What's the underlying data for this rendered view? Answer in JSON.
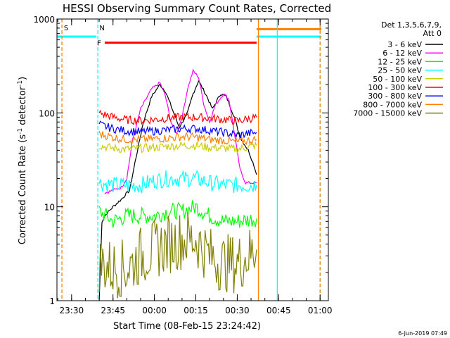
{
  "chart_data": {
    "type": "line",
    "title": "HESSI Observing Summary Count Rates, Corrected",
    "xlabel": "Start Time (08-Feb-15 23:24:42)",
    "ylabel": "Corrected Count Rate (s⁻¹ detector⁻¹)",
    "ylabel_main": "Corrected Count Rate (s",
    "ylabel_mid": " detector",
    "ylabel_end": ")",
    "ylabel_sup": "-1",
    "yscale": "log",
    "xlim": [
      "23:24:42",
      "01:03:00"
    ],
    "ylim": [
      1,
      1000
    ],
    "x_ticks": [
      "23:30",
      "23:45",
      "00:00",
      "00:15",
      "00:30",
      "00:45",
      "01:00"
    ],
    "y_ticks": [
      {
        "value": 1,
        "label": "1"
      },
      {
        "value": 10,
        "label": "10"
      },
      {
        "value": 100,
        "label": "100"
      },
      {
        "value": 1000,
        "label": "1000"
      }
    ],
    "legend_title_1": "Det 1,3,5,6,7,9,",
    "legend_title_2": "Att 0",
    "legend_position": "top-right outside plot",
    "series": [
      {
        "name": "3 - 6 keV",
        "color": "#000000",
        "points": [
          [
            "23:40",
            1
          ],
          [
            "23:41",
            7
          ],
          [
            "23:42",
            8
          ],
          [
            "23:45",
            10
          ],
          [
            "23:48",
            12
          ],
          [
            "23:51",
            15
          ],
          [
            "23:53",
            30
          ],
          [
            "23:56",
            80
          ],
          [
            "23:59",
            150
          ],
          [
            "00:02",
            200
          ],
          [
            "00:04",
            170
          ],
          [
            "00:07",
            100
          ],
          [
            "00:09",
            70
          ],
          [
            "00:12",
            100
          ],
          [
            "00:14",
            160
          ],
          [
            "00:16",
            220
          ],
          [
            "00:19",
            150
          ],
          [
            "00:21",
            110
          ],
          [
            "00:24",
            160
          ],
          [
            "00:26",
            150
          ],
          [
            "00:29",
            90
          ],
          [
            "00:31",
            55
          ],
          [
            "00:34",
            40
          ],
          [
            "00:36",
            28
          ],
          [
            "00:37",
            22
          ]
        ]
      },
      {
        "name": "6 - 12 keV",
        "color": "#ff00ff",
        "points": [
          [
            "23:42",
            14
          ],
          [
            "23:45",
            15
          ],
          [
            "23:48",
            16
          ],
          [
            "23:50",
            20
          ],
          [
            "23:52",
            50
          ],
          [
            "23:55",
            110
          ],
          [
            "23:59",
            180
          ],
          [
            "00:02",
            210
          ],
          [
            "00:04",
            150
          ],
          [
            "00:06",
            80
          ],
          [
            "00:08",
            60
          ],
          [
            "00:10",
            90
          ],
          [
            "00:12",
            180
          ],
          [
            "00:14",
            280
          ],
          [
            "00:16",
            240
          ],
          [
            "00:18",
            120
          ],
          [
            "00:20",
            80
          ],
          [
            "00:22",
            120
          ],
          [
            "00:25",
            160
          ],
          [
            "00:27",
            140
          ],
          [
            "00:29",
            60
          ],
          [
            "00:31",
            25
          ],
          [
            "00:33",
            18
          ],
          [
            "00:37",
            18
          ]
        ]
      },
      {
        "name": "12 - 25 keV",
        "color": "#00ff00",
        "points": [
          [
            "23:40",
            9
          ],
          [
            "23:45",
            7
          ],
          [
            "23:50",
            8
          ],
          [
            "23:55",
            8
          ],
          [
            "00:00",
            8
          ],
          [
            "00:05",
            9
          ],
          [
            "00:10",
            9
          ],
          [
            "00:15",
            10
          ],
          [
            "00:20",
            8
          ],
          [
            "00:25",
            7
          ],
          [
            "00:30",
            7
          ],
          [
            "00:37",
            7.5
          ]
        ]
      },
      {
        "name": "25 - 50 keV",
        "color": "#00ffff",
        "points": [
          [
            "23:40",
            18
          ],
          [
            "23:45",
            17
          ],
          [
            "23:50",
            17
          ],
          [
            "23:55",
            17
          ],
          [
            "00:00",
            19
          ],
          [
            "00:05",
            20
          ],
          [
            "00:10",
            20
          ],
          [
            "00:15",
            20
          ],
          [
            "00:20",
            18
          ],
          [
            "00:25",
            17
          ],
          [
            "00:30",
            17
          ],
          [
            "00:37",
            17
          ]
        ]
      },
      {
        "name": "50 - 100 keV",
        "color": "#cccc00",
        "points": [
          [
            "23:40",
            45
          ],
          [
            "23:45",
            42
          ],
          [
            "23:50",
            41
          ],
          [
            "23:55",
            42
          ],
          [
            "00:00",
            43
          ],
          [
            "00:05",
            44
          ],
          [
            "00:10",
            45
          ],
          [
            "00:15",
            45
          ],
          [
            "00:20",
            43
          ],
          [
            "00:25",
            42
          ],
          [
            "00:30",
            41
          ],
          [
            "00:37",
            45
          ]
        ]
      },
      {
        "name": "100 - 300 keV",
        "color": "#ff0000",
        "points": [
          [
            "23:40",
            100
          ],
          [
            "23:45",
            90
          ],
          [
            "23:50",
            84
          ],
          [
            "23:55",
            83
          ],
          [
            "00:00",
            85
          ],
          [
            "00:05",
            88
          ],
          [
            "00:10",
            90
          ],
          [
            "00:15",
            90
          ],
          [
            "00:20",
            88
          ],
          [
            "00:25",
            85
          ],
          [
            "00:30",
            82
          ],
          [
            "00:37",
            90
          ]
        ]
      },
      {
        "name": "300 - 800 keV",
        "color": "#0000ff",
        "points": [
          [
            "23:40",
            75
          ],
          [
            "23:45",
            68
          ],
          [
            "23:50",
            64
          ],
          [
            "23:55",
            63
          ],
          [
            "00:00",
            64
          ],
          [
            "00:05",
            66
          ],
          [
            "00:10",
            68
          ],
          [
            "00:15",
            68
          ],
          [
            "00:20",
            65
          ],
          [
            "00:25",
            62
          ],
          [
            "00:30",
            58
          ],
          [
            "00:37",
            62
          ]
        ]
      },
      {
        "name": "800 - 7000 keV",
        "color": "#ff8000",
        "points": [
          [
            "23:40",
            60
          ],
          [
            "23:45",
            55
          ],
          [
            "23:50",
            52
          ],
          [
            "23:55",
            52
          ],
          [
            "00:00",
            53
          ],
          [
            "00:05",
            54
          ],
          [
            "00:10",
            56
          ],
          [
            "00:15",
            55
          ],
          [
            "00:20",
            52
          ],
          [
            "00:25",
            51
          ],
          [
            "00:30",
            49
          ],
          [
            "00:37",
            52
          ]
        ]
      },
      {
        "name": "7000 - 15000 keV",
        "color": "#808000",
        "points": [
          [
            "23:40",
            2.5
          ],
          [
            "23:45",
            2.2
          ],
          [
            "23:50",
            2.2
          ],
          [
            "23:55",
            3
          ],
          [
            "00:00",
            3.5
          ],
          [
            "00:05",
            4
          ],
          [
            "00:10",
            4.5
          ],
          [
            "00:15",
            4.5
          ],
          [
            "00:20",
            3
          ],
          [
            "00:25",
            2.5
          ],
          [
            "00:30",
            2.5
          ],
          [
            "00:37",
            3.5
          ]
        ]
      }
    ],
    "annotations": [
      {
        "label": "S",
        "x": "23:26:30",
        "color": "#ff8000",
        "style": "dashed"
      },
      {
        "label": "N",
        "x": "23:39:30",
        "color": "#00ffff",
        "style": "dashed"
      },
      {
        "label": "F",
        "x": "23:41:30",
        "color": "#ff0000"
      },
      {
        "x": "00:37:40",
        "color": "#ff8000",
        "style": "solid"
      },
      {
        "x": "00:44:30",
        "color": "#00ffff",
        "style": "solid"
      },
      {
        "x": "01:00:00",
        "color": "#00ffff",
        "style": "dashed"
      },
      {
        "x": "01:00:00",
        "color": "#ff8000",
        "style": "dashed"
      }
    ],
    "status_bars": [
      {
        "color": "#ff8000",
        "from": "23:24:42",
        "to": "23:25:00",
        "value": 810
      },
      {
        "color": "#00ffff",
        "from": "23:24:42",
        "to": "23:39:00",
        "value": 650
      },
      {
        "color": "#ff0000",
        "from": "23:42:00",
        "to": "00:37:00",
        "value": 560
      },
      {
        "color": "#ff8000",
        "from": "00:37:00",
        "to": "01:00:30",
        "value": 780
      },
      {
        "color": "#00ffff",
        "from": "00:37:00",
        "to": "01:00:30",
        "value": 650
      }
    ]
  },
  "footer_date": "6-Jun-2019 07:49"
}
